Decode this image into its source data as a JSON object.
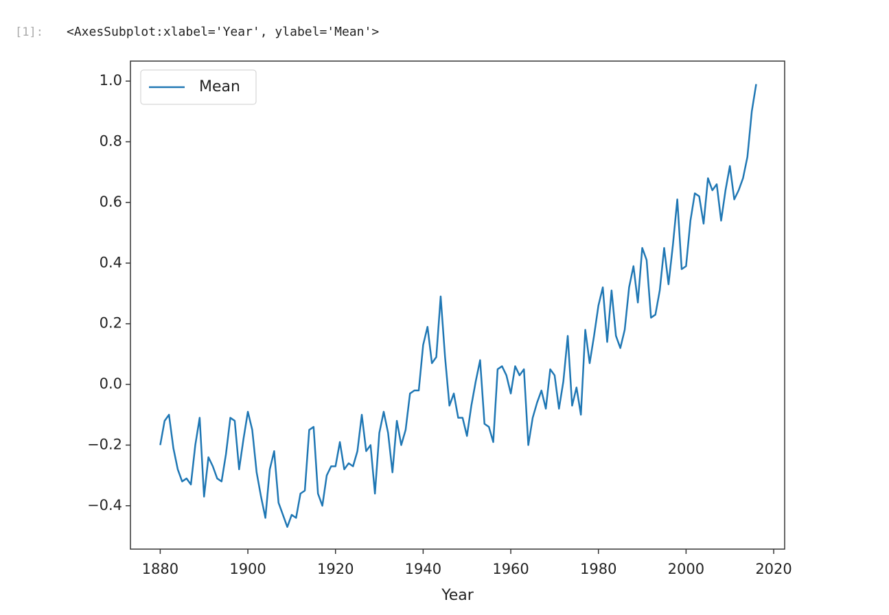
{
  "prompt": "[1]:",
  "output_text": "<AxesSubplot:xlabel='Year', ylabel='Mean'>",
  "chart_data": {
    "type": "line",
    "xlabel": "Year",
    "x": [
      1880,
      1881,
      1882,
      1883,
      1884,
      1885,
      1886,
      1887,
      1888,
      1889,
      1890,
      1891,
      1892,
      1893,
      1894,
      1895,
      1896,
      1897,
      1898,
      1899,
      1900,
      1901,
      1902,
      1903,
      1904,
      1905,
      1906,
      1907,
      1908,
      1909,
      1910,
      1911,
      1912,
      1913,
      1914,
      1915,
      1916,
      1917,
      1918,
      1919,
      1920,
      1921,
      1922,
      1923,
      1924,
      1925,
      1926,
      1927,
      1928,
      1929,
      1930,
      1931,
      1932,
      1933,
      1934,
      1935,
      1936,
      1937,
      1938,
      1939,
      1940,
      1941,
      1942,
      1943,
      1944,
      1945,
      1946,
      1947,
      1948,
      1949,
      1950,
      1951,
      1952,
      1953,
      1954,
      1955,
      1956,
      1957,
      1958,
      1959,
      1960,
      1961,
      1962,
      1963,
      1964,
      1965,
      1966,
      1967,
      1968,
      1969,
      1970,
      1971,
      1972,
      1973,
      1974,
      1975,
      1976,
      1977,
      1978,
      1979,
      1980,
      1981,
      1982,
      1983,
      1984,
      1985,
      1986,
      1987,
      1988,
      1989,
      1990,
      1991,
      1992,
      1993,
      1994,
      1995,
      1996,
      1997,
      1998,
      1999,
      2000,
      2001,
      2002,
      2003,
      2004,
      2005,
      2006,
      2007,
      2008,
      2009,
      2010,
      2011,
      2012,
      2013,
      2014,
      2015,
      2016
    ],
    "series": [
      {
        "name": "Mean",
        "color": "#1f77b4",
        "values": [
          -0.2,
          -0.12,
          -0.1,
          -0.21,
          -0.28,
          -0.32,
          -0.31,
          -0.33,
          -0.2,
          -0.11,
          -0.37,
          -0.24,
          -0.27,
          -0.31,
          -0.32,
          -0.23,
          -0.11,
          -0.12,
          -0.28,
          -0.18,
          -0.09,
          -0.15,
          -0.29,
          -0.37,
          -0.44,
          -0.28,
          -0.22,
          -0.39,
          -0.43,
          -0.47,
          -0.43,
          -0.44,
          -0.36,
          -0.35,
          -0.15,
          -0.14,
          -0.36,
          -0.4,
          -0.3,
          -0.27,
          -0.27,
          -0.19,
          -0.28,
          -0.26,
          -0.27,
          -0.22,
          -0.1,
          -0.22,
          -0.2,
          -0.36,
          -0.16,
          -0.09,
          -0.16,
          -0.29,
          -0.12,
          -0.2,
          -0.15,
          -0.03,
          -0.02,
          -0.02,
          0.13,
          0.19,
          0.07,
          0.09,
          0.29,
          0.09,
          -0.07,
          -0.03,
          -0.11,
          -0.11,
          -0.17,
          -0.07,
          0.01,
          0.08,
          -0.13,
          -0.14,
          -0.19,
          0.05,
          0.06,
          0.03,
          -0.03,
          0.06,
          0.03,
          0.05,
          -0.2,
          -0.11,
          -0.06,
          -0.02,
          -0.08,
          0.05,
          0.03,
          -0.08,
          0.01,
          0.16,
          -0.07,
          -0.01,
          -0.1,
          0.18,
          0.07,
          0.16,
          0.26,
          0.32,
          0.14,
          0.31,
          0.16,
          0.12,
          0.18,
          0.32,
          0.39,
          0.27,
          0.45,
          0.41,
          0.22,
          0.23,
          0.31,
          0.45,
          0.33,
          0.46,
          0.61,
          0.38,
          0.39,
          0.54,
          0.63,
          0.62,
          0.53,
          0.68,
          0.64,
          0.66,
          0.54,
          0.64,
          0.72,
          0.61,
          0.64,
          0.68,
          0.75,
          0.9,
          0.99
        ]
      }
    ],
    "xlim": [
      1873.2,
      2022.5
    ],
    "ylim": [
      -0.543,
      1.066
    ],
    "xticks": [
      1880,
      1900,
      1920,
      1940,
      1960,
      1980,
      2000,
      2020
    ],
    "yticks": [
      {
        "value": -0.4,
        "label": "−0.4"
      },
      {
        "value": -0.2,
        "label": "−0.2"
      },
      {
        "value": 0,
        "label": "0.0"
      },
      0.2,
      0.4,
      0.6,
      0.8,
      {
        "value": 1,
        "label": "1.0"
      }
    ],
    "legend": "upper left"
  }
}
